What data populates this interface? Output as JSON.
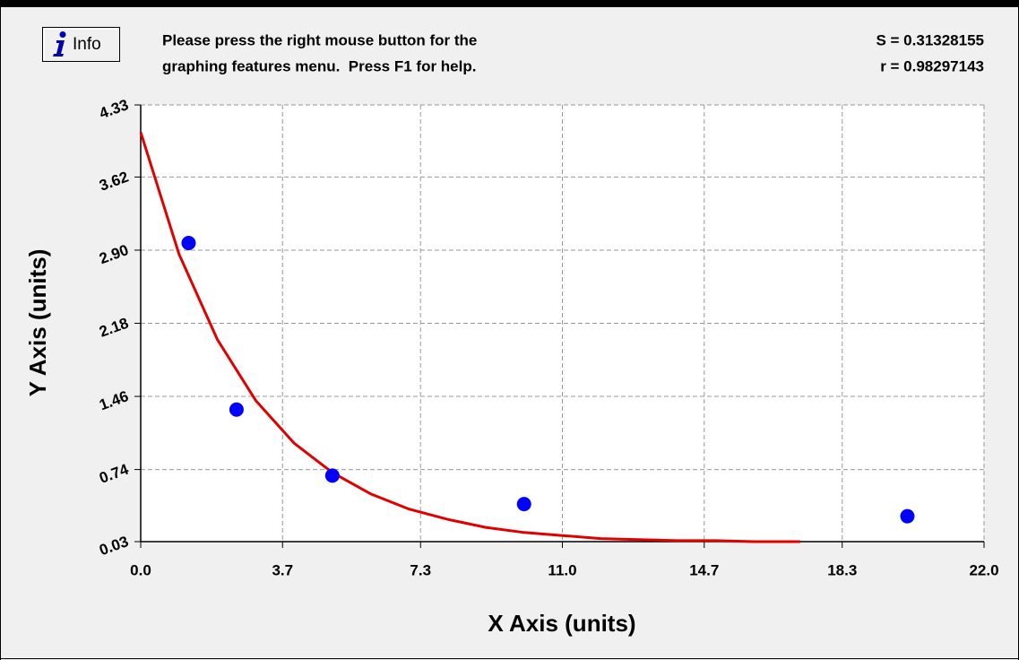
{
  "header": {
    "button": "Info",
    "instructions": [
      "Please press the right mouse button for the",
      "graphing features menu.  Press F1 for help."
    ],
    "stats": [
      "S = 0.31328155",
      "r = 0.98297143"
    ]
  },
  "chart_data": {
    "type": "scatter",
    "x_label": "X Axis (units)",
    "y_label": "Y Axis (units)",
    "xlim": [
      0,
      22
    ],
    "ylim": [
      0.03,
      4.33
    ],
    "xticks": [
      {
        "value": 0,
        "label": "0.0"
      },
      3.7,
      7.3,
      {
        "value": 11,
        "label": "11.0"
      },
      14.7,
      18.3,
      {
        "value": 22,
        "label": "22.0"
      }
    ],
    "yticks": [
      0.03,
      0.74,
      1.46,
      2.18,
      {
        "value": 2.9,
        "label": "2.90"
      },
      3.62,
      4.33
    ],
    "grid": true,
    "series": [
      {
        "type": "scatter",
        "color": "#0000ff",
        "x": [
          1.25,
          2.5,
          5,
          10,
          20
        ],
        "values": [
          2.97,
          1.33,
          0.68,
          0.4,
          0.28
        ]
      },
      {
        "type": "line",
        "color": "#e00000",
        "x": [
          0,
          1,
          2,
          3,
          4,
          5,
          6,
          7,
          8,
          9,
          10,
          11,
          12,
          13,
          14,
          15,
          16,
          17.2
        ],
        "values": [
          4.06,
          2.86,
          2.02,
          1.42,
          1.0,
          0.71,
          0.5,
          0.35,
          0.25,
          0.17,
          0.12,
          0.09,
          0.06,
          0.05,
          0.04,
          0.04,
          0.03,
          0.03
        ]
      }
    ]
  }
}
